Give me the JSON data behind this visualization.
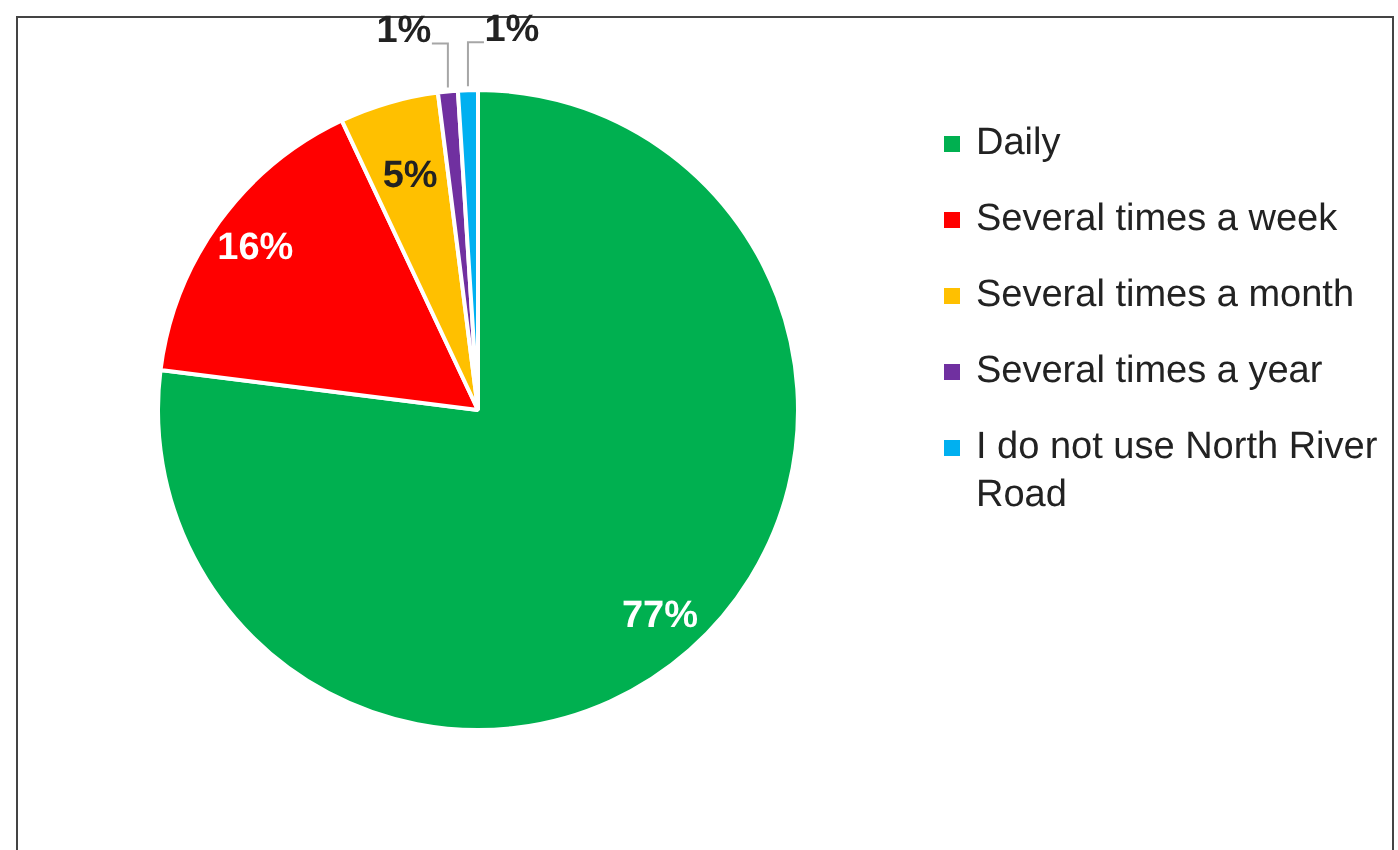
{
  "chart_data": {
    "type": "pie",
    "categories": [
      "Daily",
      "Several times a week",
      "Several times a month",
      "Several times a year",
      "I do not use North River Road"
    ],
    "values": [
      77,
      16,
      5,
      1,
      1
    ],
    "colors": [
      "#00b050",
      "#ff0000",
      "#ffc000",
      "#7030a0",
      "#00b0f0"
    ],
    "value_labels": [
      "77%",
      "16%",
      "5%",
      "1%",
      "1%"
    ],
    "legend": "right"
  }
}
